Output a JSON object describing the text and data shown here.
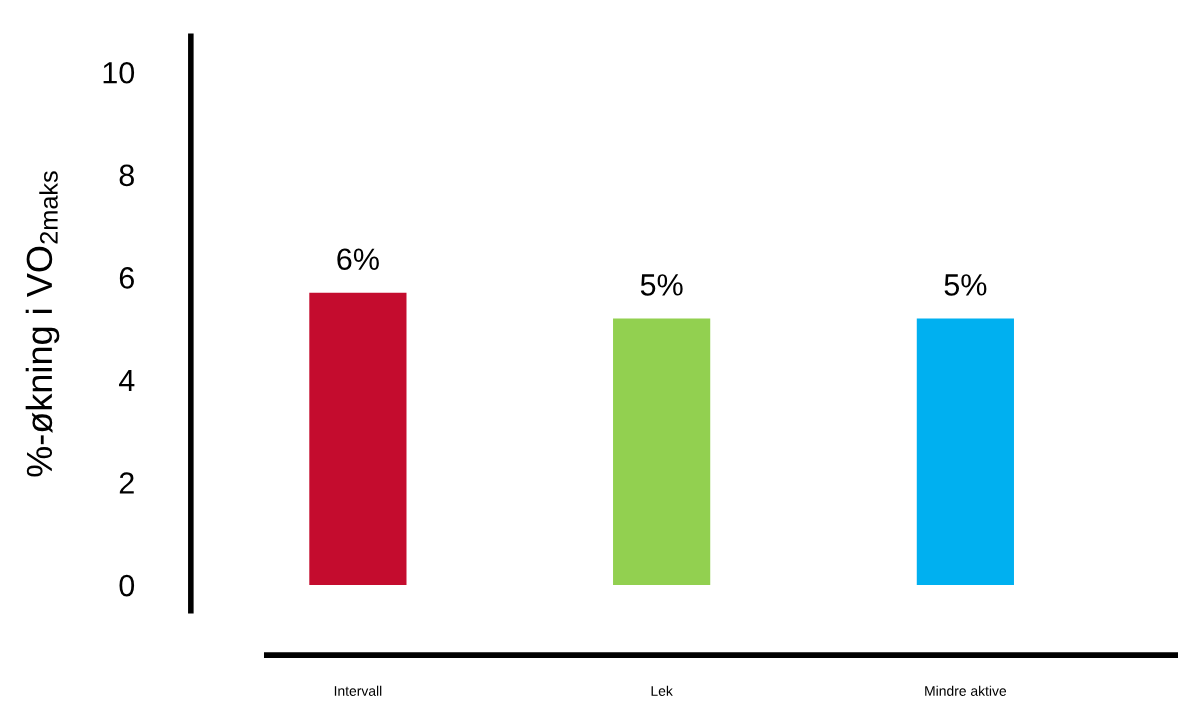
{
  "chart_data": {
    "type": "bar",
    "ylabel": "%-økning i VO$_{2maks}$",
    "categories": [
      "Intervall",
      "Lek",
      "Mindre aktive"
    ],
    "values": [
      5.7,
      5.2,
      5.2
    ],
    "colors": [
      "#c40c2e",
      "#92d050",
      "#00b0f0"
    ],
    "value_labels": [
      "6%",
      "5%",
      "5%"
    ],
    "ylim": [
      -0.5,
      10.7
    ],
    "yticks": [
      0,
      2,
      4,
      6,
      8,
      10
    ],
    "grid": false,
    "legend": false
  }
}
